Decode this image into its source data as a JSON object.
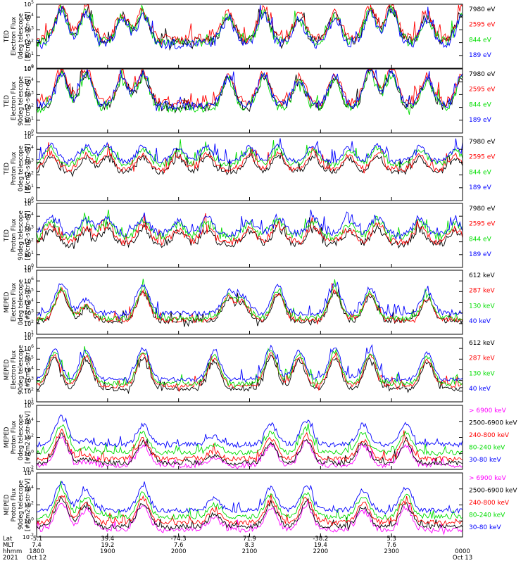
{
  "chart_data": [
    {
      "type": "line",
      "ylabel_lines": [
        "TED",
        "Electron Flux",
        "0deg telescope",
        "[#/cm2-s-str-eV]"
      ],
      "ylim": [
        1,
        100000
      ],
      "yscale": "log",
      "ytick_exponents": [
        0,
        1,
        2,
        3,
        4,
        5
      ],
      "series": [
        {
          "name": "7980 eV",
          "color": "#000000",
          "level": 1.0
        },
        {
          "name": "2595 eV",
          "color": "#ff0000",
          "level": 1.2
        },
        {
          "name": "844 eV",
          "color": "#00dd00",
          "level": 0.9
        },
        {
          "name": "189 eV",
          "color": "#0000ff",
          "level": 0.8
        }
      ],
      "peaks": [
        [
          0.35,
          2.6
        ],
        [
          0.7,
          2.4
        ],
        [
          1.2,
          2.0
        ],
        [
          1.5,
          2.2
        ],
        [
          2.7,
          2.0
        ],
        [
          3.2,
          2.3
        ],
        [
          3.7,
          1.8
        ],
        [
          4.2,
          2.0
        ],
        [
          4.7,
          2.5
        ],
        [
          5.0,
          2.6
        ],
        [
          5.5,
          1.9
        ],
        [
          6.0,
          2.3
        ],
        [
          6.45,
          1.9
        ]
      ],
      "base_min": 0.7,
      "base_max": 1.5
    },
    {
      "type": "line",
      "ylabel_lines": [
        "TED",
        "Electron Flux",
        "90deg telescope",
        "[#/cm2-s-str-eV]"
      ],
      "ylim": [
        1,
        100000
      ],
      "yscale": "log",
      "ytick_exponents": [
        0,
        1,
        2,
        3,
        4,
        5
      ],
      "series": [
        {
          "name": "7980 eV",
          "color": "#000000",
          "level": 1.0
        },
        {
          "name": "2595 eV",
          "color": "#ff0000",
          "level": 1.3
        },
        {
          "name": "844 eV",
          "color": "#00dd00",
          "level": 0.9
        },
        {
          "name": "189 eV",
          "color": "#0000ff",
          "level": 1.1
        }
      ],
      "peaks": [
        [
          0.35,
          2.6
        ],
        [
          0.7,
          2.6
        ],
        [
          1.2,
          2.1
        ],
        [
          1.5,
          2.4
        ],
        [
          2.7,
          2.2
        ],
        [
          3.2,
          2.4
        ],
        [
          3.7,
          2.0
        ],
        [
          4.2,
          2.2
        ],
        [
          4.7,
          2.8
        ],
        [
          5.0,
          2.6
        ],
        [
          5.5,
          2.1
        ],
        [
          6.0,
          2.4
        ],
        [
          6.45,
          2.1
        ]
      ],
      "base_min": 0.7,
      "base_max": 1.4
    },
    {
      "type": "line",
      "ylabel_lines": [
        "TED",
        "Proton Flux",
        "0deg telescope",
        "[#/cm2-s-str-eV]"
      ],
      "ylim": [
        1,
        100000
      ],
      "yscale": "log",
      "ytick_exponents": [
        0,
        1,
        2,
        3,
        4,
        5
      ],
      "series": [
        {
          "name": "7980 eV",
          "color": "#000000",
          "level": 0.4
        },
        {
          "name": "2595 eV",
          "color": "#ff0000",
          "level": 0.6
        },
        {
          "name": "844 eV",
          "color": "#00dd00",
          "level": 1.0
        },
        {
          "name": "189 eV",
          "color": "#0000ff",
          "level": 1.25
        }
      ],
      "peaks": [
        [
          0.2,
          1.3
        ],
        [
          0.7,
          1.2
        ],
        [
          1.0,
          1.3
        ],
        [
          1.5,
          1.2
        ],
        [
          2.0,
          1.1
        ],
        [
          2.4,
          1.2
        ],
        [
          3.0,
          1.1
        ],
        [
          3.4,
          1.3
        ],
        [
          3.9,
          1.2
        ],
        [
          4.4,
          1.1
        ],
        [
          4.8,
          1.3
        ],
        [
          5.4,
          1.2
        ],
        [
          5.9,
          1.1
        ],
        [
          6.4,
          1.3
        ]
      ],
      "base_min": 1.6,
      "base_max": 2.0
    },
    {
      "type": "line",
      "ylabel_lines": [
        "TED",
        "Proton Flux",
        "90deg telescope",
        "[#/cm2-s-str-eV]"
      ],
      "ylim": [
        1,
        100000
      ],
      "yscale": "log",
      "ytick_exponents": [
        0,
        1,
        2,
        3,
        4,
        5
      ],
      "series": [
        {
          "name": "7980 eV",
          "color": "#000000",
          "level": 0.4
        },
        {
          "name": "2595 eV",
          "color": "#ff0000",
          "level": 0.6
        },
        {
          "name": "844 eV",
          "color": "#00dd00",
          "level": 1.0
        },
        {
          "name": "189 eV",
          "color": "#0000ff",
          "level": 1.25
        }
      ],
      "peaks": [
        [
          0.2,
          1.2
        ],
        [
          0.7,
          1.1
        ],
        [
          1.0,
          1.3
        ],
        [
          1.5,
          1.2
        ],
        [
          2.0,
          1.0
        ],
        [
          2.4,
          1.2
        ],
        [
          3.0,
          1.0
        ],
        [
          3.4,
          1.3
        ],
        [
          3.9,
          1.2
        ],
        [
          4.4,
          1.0
        ],
        [
          4.8,
          1.3
        ],
        [
          5.4,
          1.2
        ],
        [
          5.9,
          1.0
        ],
        [
          6.4,
          1.3
        ]
      ],
      "base_min": 1.1,
      "base_max": 1.7
    },
    {
      "type": "line",
      "ylabel_lines": [
        "MEPED",
        "Electron Flux",
        "0deg telescope",
        "[#/cm2-s-str]"
      ],
      "ylim": [
        10,
        10000000
      ],
      "yscale": "log",
      "ytick_exponents": [
        1,
        2,
        3,
        4,
        5,
        6,
        7
      ],
      "series": [
        {
          "name": "612 keV",
          "color": "#000000",
          "level": 0.0
        },
        {
          "name": "287 keV",
          "color": "#ff0000",
          "level": 0.1
        },
        {
          "name": "130 keV",
          "color": "#00dd00",
          "level": 0.25
        },
        {
          "name": "40 keV",
          "color": "#0000ff",
          "level": 0.7
        }
      ],
      "peaks": [
        [
          0.35,
          2.8
        ],
        [
          0.7,
          1.3
        ],
        [
          1.5,
          2.7
        ],
        [
          2.7,
          2.0
        ],
        [
          2.9,
          1.6
        ],
        [
          3.4,
          2.5
        ],
        [
          4.2,
          2.7
        ],
        [
          4.7,
          2.4
        ],
        [
          5.5,
          2.0
        ],
        [
          6.35,
          2.7
        ]
      ],
      "base_min": 2.0,
      "base_max": 2.5
    },
    {
      "type": "line",
      "ylabel_lines": [
        "MEPED",
        "Electron Flux",
        "90deg telescope",
        "[#/cm2-s-str]"
      ],
      "ylim": [
        10,
        10000000
      ],
      "yscale": "log",
      "ytick_exponents": [
        1,
        2,
        3,
        4,
        5,
        6,
        7
      ],
      "series": [
        {
          "name": "612 keV",
          "color": "#000000",
          "level": 0.0
        },
        {
          "name": "287 keV",
          "color": "#ff0000",
          "level": 0.3
        },
        {
          "name": "130 keV",
          "color": "#00dd00",
          "level": 0.5
        },
        {
          "name": "40 keV",
          "color": "#0000ff",
          "level": 0.9
        }
      ],
      "peaks": [
        [
          0.25,
          2.9
        ],
        [
          0.7,
          2.7
        ],
        [
          1.5,
          2.9
        ],
        [
          2.5,
          2.6
        ],
        [
          3.3,
          3.0
        ],
        [
          3.7,
          2.7
        ],
        [
          4.2,
          2.9
        ],
        [
          4.7,
          2.8
        ],
        [
          5.5,
          2.5
        ],
        [
          6.35,
          2.8
        ]
      ],
      "base_min": 2.0,
      "base_max": 2.4
    },
    {
      "type": "line",
      "ylabel_lines": [
        "MEPED",
        "Proton Flux",
        "0deg telescope",
        "[#/cm2-s-str-keV]"
      ],
      "ylim": [
        0.01,
        1000000
      ],
      "yscale": "log",
      "ytick_exponents": [
        -2,
        0,
        2,
        4,
        6
      ],
      "series": [
        {
          "name": "> 6900 keV",
          "color": "#ff00ff",
          "level": -2.6
        },
        {
          "name": "2500-6900 keV",
          "color": "#000000",
          "level": -2.3
        },
        {
          "name": "240-800 keV",
          "color": "#ff0000",
          "level": -1.8
        },
        {
          "name": "80-240 keV",
          "color": "#00dd00",
          "level": -1.0
        },
        {
          "name": "30-80 keV",
          "color": "#0000ff",
          "level": 0.0
        }
      ],
      "peaks": [
        [
          0.35,
          3.5
        ],
        [
          0.7,
          0.5
        ],
        [
          1.5,
          2.5
        ],
        [
          2.5,
          1.0
        ],
        [
          3.3,
          2.5
        ],
        [
          3.8,
          3.0
        ],
        [
          4.6,
          2.5
        ],
        [
          5.2,
          2.5
        ],
        [
          6.35,
          2.5
        ]
      ],
      "base_min": 0.8,
      "base_max": 1.4
    },
    {
      "type": "line",
      "ylabel_lines": [
        "MEPED",
        "Proton Flux",
        "90deg telescope",
        "[#/cm2-s-str-keV]"
      ],
      "ylim": [
        0.01,
        1000000
      ],
      "yscale": "log",
      "ytick_exponents": [
        -2,
        0,
        2,
        4,
        6
      ],
      "series": [
        {
          "name": "> 6900 keV",
          "color": "#ff00ff",
          "level": -2.4
        },
        {
          "name": "2500-6900 keV",
          "color": "#000000",
          "level": -2.0
        },
        {
          "name": "240-800 keV",
          "color": "#ff0000",
          "level": -1.5
        },
        {
          "name": "80-240 keV",
          "color": "#00dd00",
          "level": -0.8
        },
        {
          "name": "30-80 keV",
          "color": "#0000ff",
          "level": 0.0
        }
      ],
      "peaks": [
        [
          0.35,
          3.5
        ],
        [
          0.7,
          2.5
        ],
        [
          1.5,
          3.0
        ],
        [
          2.5,
          1.5
        ],
        [
          3.3,
          2.8
        ],
        [
          3.8,
          3.0
        ],
        [
          4.6,
          2.5
        ],
        [
          5.2,
          2.8
        ],
        [
          6.35,
          2.5
        ]
      ],
      "base_min": 1.0,
      "base_max": 1.6
    }
  ],
  "x_axis": {
    "range": [
      1800,
      2400
    ],
    "tick_positions": [
      1800,
      1900,
      2000,
      2100,
      2200,
      2300,
      2400
    ],
    "row_labels": [
      "Lat",
      "MLT",
      "hhmm",
      "2021"
    ],
    "lat": [
      "-5.1",
      "39.4",
      "-74.3",
      "71.9",
      "-38.2",
      "5.3",
      ""
    ],
    "mlt": [
      "7.4",
      "19.2",
      "7.6",
      "8.3",
      "19.4",
      "7.6",
      ""
    ],
    "hhmm": [
      "1800",
      "1900",
      "2000",
      "2100",
      "2200",
      "2300",
      "0000"
    ],
    "date": [
      "Oct 12",
      "",
      "",
      "",
      "",
      "",
      "Oct 13"
    ]
  }
}
